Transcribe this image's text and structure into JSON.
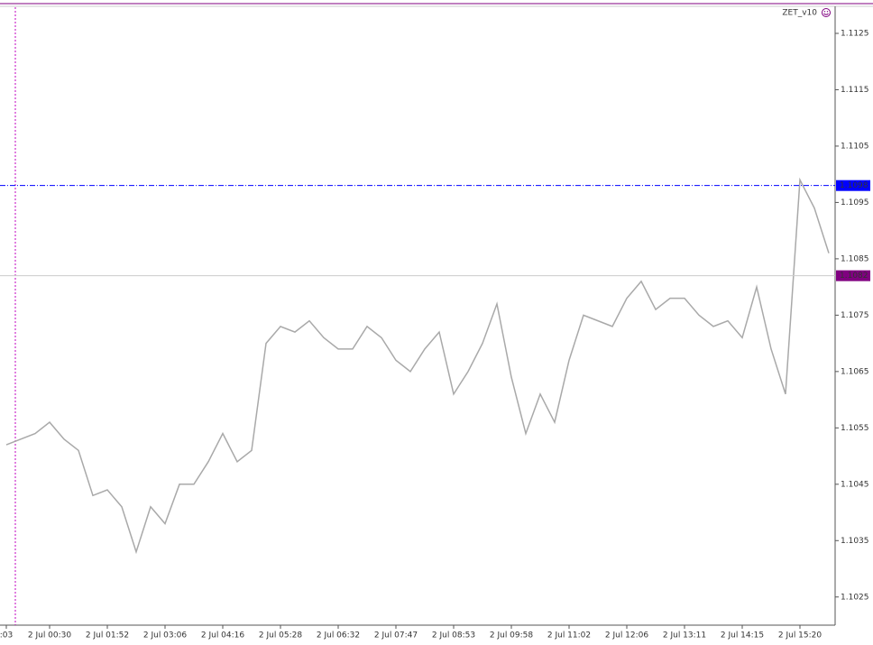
{
  "chart_data": {
    "type": "line",
    "title": "ZET_v10",
    "categories": [
      ":03",
      null,
      null,
      "2 Jul 00:30",
      null,
      null,
      null,
      "2 Jul 01:52",
      null,
      null,
      null,
      "2 Jul 03:06",
      null,
      null,
      null,
      "2 Jul 04:16",
      null,
      null,
      null,
      "2 Jul 05:28",
      null,
      null,
      null,
      "2 Jul 06:32",
      null,
      null,
      null,
      "2 Jul 07:47",
      null,
      null,
      null,
      "2 Jul 08:53",
      null,
      null,
      null,
      "2 Jul 09:58",
      null,
      null,
      null,
      "2 Jul 11:02",
      null,
      null,
      null,
      "2 Jul 12:06",
      null,
      null,
      null,
      "2 Jul 13:11",
      null,
      null,
      null,
      "2 Jul 14:15",
      null,
      null,
      null,
      "2 Jul 15:20",
      null,
      null
    ],
    "series": [
      {
        "color": "#a9a9a9",
        "values": [
          1.1052,
          1.1053,
          1.1054,
          1.1056,
          1.1053,
          1.1051,
          1.1043,
          1.1044,
          1.1041,
          1.1033,
          1.1041,
          1.1038,
          1.1045,
          1.1045,
          1.1049,
          1.1054,
          1.1049,
          1.1051,
          1.107,
          1.1073,
          1.1072,
          1.1074,
          1.1071,
          1.1069,
          1.1069,
          1.1073,
          1.1071,
          1.1067,
          1.1065,
          1.1069,
          1.1072,
          1.1061,
          1.1065,
          1.107,
          1.1077,
          1.1064,
          1.1054,
          1.1061,
          1.1056,
          1.1067,
          1.1075,
          1.1074,
          1.1073,
          1.1078,
          1.1081,
          1.1076,
          1.1078,
          1.1078,
          1.1075,
          1.1073,
          1.1074,
          1.1071,
          1.108,
          1.1069,
          1.1061,
          1.1099,
          1.1094,
          1.1086
        ]
      }
    ],
    "ylim": [
      1.102,
      1.113
    ],
    "yticks": [
      1.1025,
      1.1035,
      1.1045,
      1.1055,
      1.1065,
      1.1075,
      1.1085,
      1.1095,
      1.1105,
      1.1115,
      1.1125
    ],
    "price_levels": [
      {
        "value": 1.1098,
        "color": "#0000ff"
      },
      {
        "value": 1.1082,
        "color": "#800080"
      }
    ]
  }
}
